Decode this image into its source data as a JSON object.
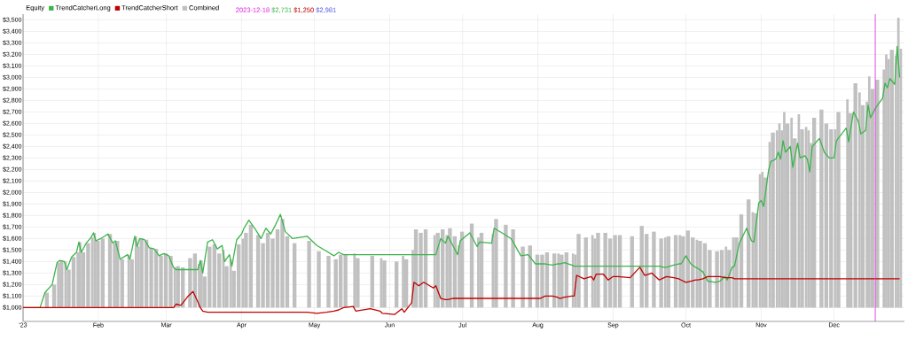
{
  "chart_data": {
    "type": "line",
    "legend_title": "Equity",
    "legend": "top left",
    "grid": true,
    "xlim": [
      "2023-01-01",
      "2023-12-30"
    ],
    "xticks": [
      {
        "value": "2023-01-01",
        "label": "'23"
      },
      {
        "value": "2023-02-01",
        "label": "Feb"
      },
      {
        "value": "2023-03-01",
        "label": "Mar"
      },
      {
        "value": "2023-04-01",
        "label": "Apr"
      },
      {
        "value": "2023-05-01",
        "label": "May"
      },
      {
        "value": "2023-06-01",
        "label": "Jun"
      },
      {
        "value": "2023-07-01",
        "label": "Jul"
      },
      {
        "value": "2023-08-01",
        "label": "Aug"
      },
      {
        "value": "2023-09-01",
        "label": "Sep"
      },
      {
        "value": "2023-10-01",
        "label": "Oct"
      },
      {
        "value": "2023-11-01",
        "label": "Nov"
      },
      {
        "value": "2023-12-01",
        "label": "Dec"
      }
    ],
    "ylim": [
      880,
      3550
    ],
    "yticks": [
      {
        "value": 1000,
        "label": "$1,000"
      },
      {
        "value": 1100,
        "label": "$1,100"
      },
      {
        "value": 1200,
        "label": "$1,200"
      },
      {
        "value": 1300,
        "label": "$1,300"
      },
      {
        "value": 1400,
        "label": "$1,400"
      },
      {
        "value": 1500,
        "label": "$1,500"
      },
      {
        "value": 1600,
        "label": "$1,600"
      },
      {
        "value": 1700,
        "label": "$1,700"
      },
      {
        "value": 1800,
        "label": "$1,800"
      },
      {
        "value": 1900,
        "label": "$1,900"
      },
      {
        "value": 2000,
        "label": "$2,000"
      },
      {
        "value": 2100,
        "label": "$2,100"
      },
      {
        "value": 2200,
        "label": "$2,200"
      },
      {
        "value": 2300,
        "label": "$2,300"
      },
      {
        "value": 2400,
        "label": "$2,400"
      },
      {
        "value": 2500,
        "label": "$2,500"
      },
      {
        "value": 2600,
        "label": "$2,600"
      },
      {
        "value": 2700,
        "label": "$2,700"
      },
      {
        "value": 2800,
        "label": "$2,800"
      },
      {
        "value": 2900,
        "label": "$2,900"
      },
      {
        "value": 3000,
        "label": "$3,000"
      },
      {
        "value": 3100,
        "label": "$3,100"
      },
      {
        "value": 3200,
        "label": "$3,200"
      },
      {
        "value": 3300,
        "label": "$3,300"
      },
      {
        "value": 3400,
        "label": "$3,400"
      },
      {
        "value": 3500,
        "label": "$3,500"
      }
    ],
    "ref_lines": [
      {
        "axis": "x",
        "value": "2023-12-18",
        "label": "2023-12-18",
        "color": "#e020e0"
      }
    ],
    "annotations": [
      "$2,731",
      "$1,250",
      "$2,981"
    ],
    "x": [
      "2023-01-01",
      "2023-01-08",
      "2023-01-10",
      "2023-01-13",
      "2023-01-15",
      "2023-01-16",
      "2023-01-18",
      "2023-01-19",
      "2023-01-21",
      "2023-01-23",
      "2023-01-24",
      "2023-01-25",
      "2023-01-27",
      "2023-01-29",
      "2023-01-30",
      "2023-01-31",
      "2023-02-02",
      "2023-02-05",
      "2023-02-07",
      "2023-02-08",
      "2023-02-10",
      "2023-02-13",
      "2023-02-14",
      "2023-02-16",
      "2023-02-17",
      "2023-02-18",
      "2023-02-20",
      "2023-02-22",
      "2023-02-24",
      "2023-02-26",
      "2023-02-28",
      "2023-03-02",
      "2023-03-04",
      "2023-03-05",
      "2023-03-07",
      "2023-03-10",
      "2023-03-12",
      "2023-03-14",
      "2023-03-15",
      "2023-03-16",
      "2023-03-18",
      "2023-03-20",
      "2023-03-22",
      "2023-03-24",
      "2023-03-25",
      "2023-03-27",
      "2023-03-28",
      "2023-03-30",
      "2023-04-01",
      "2023-04-02",
      "2023-04-04",
      "2023-04-07",
      "2023-04-09",
      "2023-04-11",
      "2023-04-13",
      "2023-04-15",
      "2023-04-17",
      "2023-04-19",
      "2023-04-22",
      "2023-04-28",
      "2023-05-02",
      "2023-05-06",
      "2023-05-09",
      "2023-05-11",
      "2023-05-13",
      "2023-05-17",
      "2023-05-18",
      "2023-05-24",
      "2023-05-28",
      "2023-05-29",
      "2023-06-03",
      "2023-06-06",
      "2023-06-07",
      "2023-06-10",
      "2023-06-11",
      "2023-06-13",
      "2023-06-15",
      "2023-06-19",
      "2023-06-20",
      "2023-06-22",
      "2023-06-24",
      "2023-06-25",
      "2023-06-27",
      "2023-06-29",
      "2023-06-30",
      "2023-07-04",
      "2023-07-07",
      "2023-07-08",
      "2023-07-13",
      "2023-07-14",
      "2023-07-18",
      "2023-07-21",
      "2023-07-25",
      "2023-07-28",
      "2023-07-31",
      "2023-08-02",
      "2023-08-04",
      "2023-08-07",
      "2023-08-09",
      "2023-08-10",
      "2023-08-12",
      "2023-08-15",
      "2023-08-16",
      "2023-08-17",
      "2023-08-20",
      "2023-08-23",
      "2023-08-24",
      "2023-08-25",
      "2023-08-28",
      "2023-08-30",
      "2023-09-01",
      "2023-09-03",
      "2023-09-08",
      "2023-09-12",
      "2023-09-14",
      "2023-09-17",
      "2023-09-20",
      "2023-09-22",
      "2023-09-23",
      "2023-09-26",
      "2023-09-28",
      "2023-09-29",
      "2023-10-01",
      "2023-10-03",
      "2023-10-05",
      "2023-10-06",
      "2023-10-08",
      "2023-10-10",
      "2023-10-13",
      "2023-10-15",
      "2023-10-17",
      "2023-10-18",
      "2023-10-20",
      "2023-10-21",
      "2023-10-23",
      "2023-10-26",
      "2023-10-28",
      "2023-10-29",
      "2023-10-31",
      "2023-11-01",
      "2023-11-02",
      "2023-11-04",
      "2023-11-05",
      "2023-11-07",
      "2023-11-08",
      "2023-11-09",
      "2023-11-10",
      "2023-11-11",
      "2023-11-13",
      "2023-11-14",
      "2023-11-16",
      "2023-11-17",
      "2023-11-19",
      "2023-11-20",
      "2023-11-21",
      "2023-11-22",
      "2023-11-25",
      "2023-11-27",
      "2023-11-29",
      "2023-12-01",
      "2023-12-02",
      "2023-12-06",
      "2023-12-07",
      "2023-12-09",
      "2023-12-11",
      "2023-12-12",
      "2023-12-14",
      "2023-12-15",
      "2023-12-16",
      "2023-12-18",
      "2023-12-21",
      "2023-12-22",
      "2023-12-23",
      "2023-12-24",
      "2023-12-26",
      "2023-12-27",
      "2023-12-28"
    ],
    "series": [
      {
        "name": "TrendCatcherLong",
        "color": "#3cb44b",
        "values": [
          1000,
          1000,
          1130,
          1200,
          1390,
          1410,
          1400,
          1330,
          1440,
          1480,
          1570,
          1480,
          1560,
          1610,
          1650,
          1580,
          1600,
          1640,
          1560,
          1580,
          1420,
          1460,
          1420,
          1620,
          1530,
          1600,
          1590,
          1520,
          1510,
          1450,
          1470,
          1450,
          1350,
          1330,
          1330,
          1330,
          1330,
          1330,
          1410,
          1300,
          1570,
          1590,
          1510,
          1540,
          1400,
          1460,
          1360,
          1590,
          1640,
          1690,
          1760,
          1670,
          1600,
          1690,
          1640,
          1720,
          1810,
          1660,
          1600,
          1620,
          1540,
          1490,
          1450,
          1480,
          1460,
          1460,
          1460,
          1460,
          1460,
          1460,
          1460,
          1460,
          1460,
          1460,
          1460,
          1460,
          1460,
          1460,
          1460,
          1600,
          1560,
          1620,
          1540,
          1460,
          1580,
          1650,
          1530,
          1570,
          1560,
          1690,
          1640,
          1600,
          1450,
          1460,
          1380,
          1380,
          1380,
          1370,
          1380,
          1380,
          1390,
          1370,
          1360,
          1360,
          1360,
          1360,
          1360,
          1360,
          1360,
          1360,
          1360,
          1360,
          1360,
          1360,
          1360,
          1360,
          1360,
          1350,
          1350,
          1370,
          1380,
          1380,
          1450,
          1380,
          1350,
          1340,
          1310,
          1230,
          1220,
          1230,
          1270,
          1240,
          1350,
          1360,
          1560,
          1690,
          1580,
          1570,
          1910,
          1930,
          1880,
          2190,
          2270,
          2290,
          2350,
          2290,
          2450,
          2350,
          2400,
          2220,
          2430,
          2300,
          2320,
          2290,
          2180,
          2400,
          2470,
          2350,
          2300,
          2300,
          2450,
          2560,
          2440,
          2700,
          2620,
          2510,
          2540,
          2760,
          2650,
          2731,
          2820,
          2950,
          2910,
          2990,
          2940,
          3270,
          3000
        ]
      },
      {
        "name": "TrendCatcherShort",
        "color": "#c00000",
        "values": [
          1000,
          1000,
          1000,
          1000,
          1000,
          1000,
          1000,
          1000,
          1000,
          1000,
          1000,
          1000,
          1000,
          1000,
          1000,
          1000,
          1000,
          1000,
          1000,
          1000,
          1000,
          1000,
          1000,
          1000,
          1000,
          1000,
          1000,
          1000,
          1000,
          1000,
          1000,
          1000,
          1000,
          1030,
          1020,
          1100,
          1140,
          1050,
          1000,
          970,
          960,
          960,
          960,
          960,
          960,
          960,
          960,
          960,
          960,
          960,
          960,
          960,
          960,
          960,
          960,
          960,
          960,
          960,
          960,
          960,
          950,
          960,
          970,
          980,
          1000,
          1010,
          970,
          990,
          970,
          950,
          940,
          990,
          960,
          1040,
          1220,
          1190,
          1220,
          1170,
          1190,
          1080,
          1070,
          1070,
          1080,
          1080,
          1080,
          1080,
          1080,
          1080,
          1080,
          1080,
          1080,
          1080,
          1080,
          1080,
          1080,
          1080,
          1100,
          1100,
          1090,
          1080,
          1090,
          1100,
          1100,
          1280,
          1250,
          1270,
          1240,
          1290,
          1290,
          1240,
          1270,
          1270,
          1260,
          1350,
          1280,
          1300,
          1240,
          1260,
          1270,
          1260,
          1250,
          1240,
          1220,
          1230,
          1240,
          1240,
          1250,
          1270,
          1270,
          1270,
          1260,
          1260,
          1260,
          1250,
          1250,
          1250,
          1250,
          1250,
          1250,
          1250,
          1250,
          1250,
          1250,
          1250,
          1250,
          1250,
          1250,
          1250,
          1250,
          1250,
          1250,
          1250,
          1250,
          1250,
          1250,
          1250,
          1250,
          1250,
          1250,
          1250,
          1250,
          1250,
          1250,
          1250,
          1250,
          1250,
          1250,
          1250,
          1250,
          1250,
          1250,
          1250,
          1250,
          1250,
          1250,
          1250,
          1250
        ]
      },
      {
        "name": "Combined",
        "type": "bar",
        "color": "#c0c0c0",
        "values": [
          null,
          null,
          130,
          200,
          390,
          410,
          400,
          330,
          440,
          480,
          570,
          480,
          560,
          610,
          650,
          580,
          600,
          640,
          560,
          580,
          420,
          460,
          420,
          620,
          530,
          600,
          590,
          520,
          510,
          450,
          470,
          450,
          350,
          360,
          350,
          430,
          470,
          380,
          410,
          270,
          530,
          550,
          470,
          500,
          360,
          420,
          320,
          550,
          600,
          650,
          720,
          630,
          560,
          650,
          600,
          680,
          770,
          620,
          560,
          580,
          490,
          450,
          420,
          460,
          460,
          470,
          430,
          450,
          430,
          410,
          400,
          450,
          420,
          500,
          680,
          650,
          680,
          630,
          650,
          680,
          630,
          690,
          620,
          540,
          660,
          730,
          610,
          650,
          640,
          770,
          720,
          680,
          530,
          540,
          460,
          460,
          480,
          470,
          470,
          460,
          480,
          470,
          460,
          640,
          610,
          630,
          600,
          650,
          650,
          600,
          630,
          630,
          620,
          710,
          640,
          660,
          600,
          610,
          620,
          630,
          630,
          620,
          670,
          610,
          590,
          580,
          560,
          500,
          490,
          500,
          530,
          500,
          610,
          610,
          810,
          940,
          830,
          820,
          1160,
          1180,
          1130,
          1440,
          1520,
          1540,
          1600,
          1540,
          1700,
          1600,
          1650,
          1470,
          1680,
          1550,
          1570,
          1540,
          1430,
          1650,
          1720,
          1600,
          1550,
          1550,
          1700,
          1810,
          1690,
          1950,
          1870,
          1760,
          1790,
          2010,
          1900,
          1981,
          2070,
          2200,
          2160,
          2240,
          2190,
          2520,
          2250
        ],
        "base": [
          null,
          null,
          1000,
          1000,
          1000,
          1000,
          1000,
          1000,
          1000,
          1000,
          1000,
          1000,
          1000,
          1000,
          1000,
          1000,
          1000,
          1000,
          1000,
          1000,
          1000,
          1000,
          1000,
          1000,
          1000,
          1000,
          1000,
          1000,
          1000,
          1000,
          1000,
          1000,
          1000,
          1000,
          1000,
          1000,
          1000,
          1000,
          1000,
          1000,
          1000,
          1000,
          1000,
          1000,
          1000,
          1000,
          1000,
          1000,
          1000,
          1000,
          1000,
          1000,
          1000,
          1000,
          1000,
          1000,
          1000,
          1000,
          1000,
          1000,
          1000,
          1000,
          1000,
          1000,
          1000,
          1000,
          1000,
          1000,
          1000,
          1000,
          1000,
          1000,
          1000,
          1000,
          1000,
          1000,
          1000,
          1000,
          1000,
          1000,
          1000,
          1000,
          1000,
          1000,
          1000,
          1000,
          1000,
          1000,
          1000,
          1000,
          1000,
          1000,
          1000,
          1000,
          1000,
          1000,
          1000,
          1000,
          1000,
          1000,
          1000,
          1000,
          1000,
          1000,
          1000,
          1000,
          1000,
          1000,
          1000,
          1000,
          1000,
          1000,
          1000,
          1000,
          1000,
          1000,
          1000,
          1000,
          1000,
          1000,
          1000,
          1000,
          1000,
          1000,
          1000,
          1000,
          1000,
          1000,
          1000,
          1000,
          1000,
          1000,
          1000,
          1000,
          1000,
          1000,
          1000,
          1000,
          1000,
          1000,
          1000,
          1000,
          1000,
          1000,
          1000,
          1000,
          1000,
          1000,
          1000,
          1000,
          1000,
          1000,
          1000,
          1000,
          1000,
          1000,
          1000,
          1000,
          1000,
          1000,
          1000,
          1000,
          1000,
          1000,
          1000,
          1000,
          1000,
          1000,
          1000,
          1000,
          1000,
          1000,
          1000,
          1000,
          1000,
          1000,
          1000
        ]
      }
    ]
  }
}
